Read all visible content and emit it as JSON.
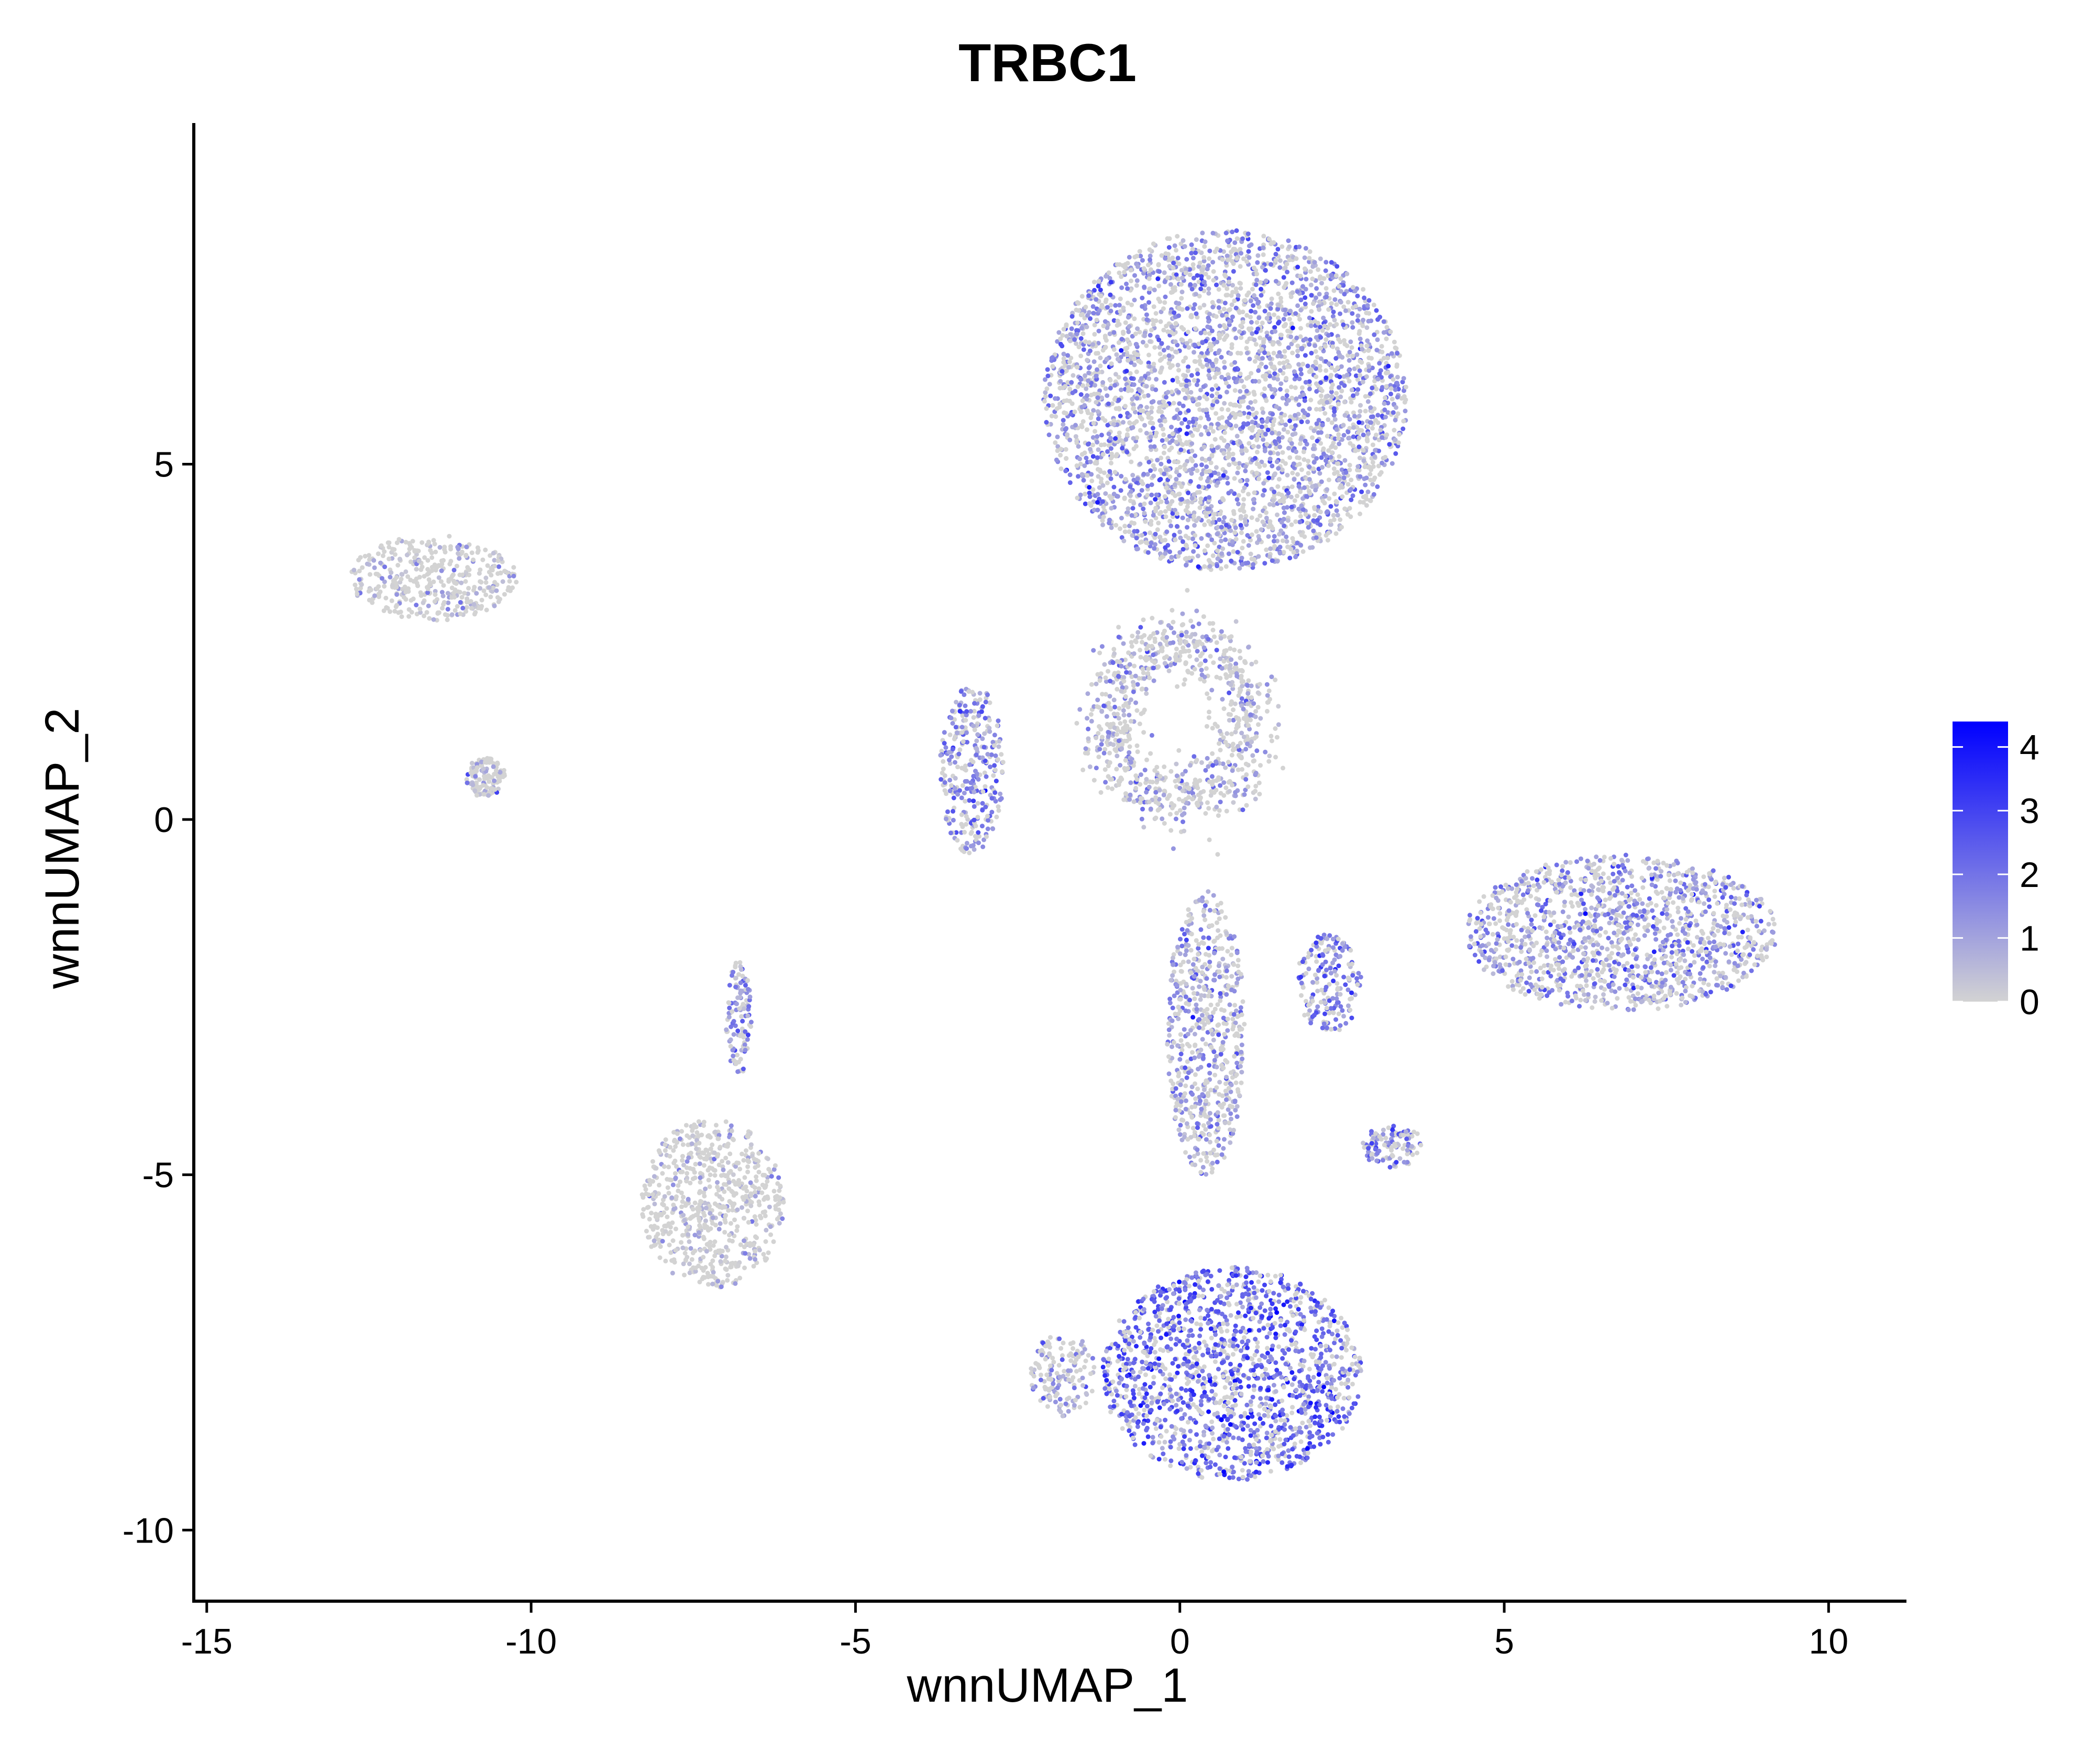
{
  "chart_data": {
    "type": "scatter",
    "title": "TRBC1",
    "xlabel": "wnnUMAP_1",
    "ylabel": "wnnUMAP_2",
    "xlim": [
      -15.2,
      11.2
    ],
    "ylim": [
      -11,
      9.8
    ],
    "xticks": [
      -15,
      -10,
      -5,
      0,
      5,
      10
    ],
    "yticks": [
      -10,
      -5,
      0,
      5
    ],
    "xtick_labels": [
      "-15",
      "-10",
      "-5",
      "0",
      "5",
      "10"
    ],
    "ytick_labels": [
      "-10",
      "-5",
      "0",
      "5"
    ],
    "grid": false,
    "legend": {
      "placement": "right",
      "ticks": [
        0,
        1,
        2,
        3,
        4
      ],
      "tick_labels": [
        "0",
        "1",
        "2",
        "3",
        "4"
      ],
      "range": [
        0,
        4.4
      ],
      "colors": {
        "low": "#d3d3d3",
        "high": "#0000ff"
      }
    },
    "clusters": [
      {
        "center": [
          -11.5,
          3.4
        ],
        "spread": [
          1.3,
          0.6
        ],
        "expression_mean": 0.05,
        "shape": "blob"
      },
      {
        "center": [
          -7.2,
          -5.4
        ],
        "spread": [
          1.1,
          1.2
        ],
        "expression_mean": 0.08,
        "shape": "blob"
      },
      {
        "center": [
          -10.7,
          0.6
        ],
        "spread": [
          0.3,
          0.3
        ],
        "expression_mean": 0.05,
        "shape": "blob"
      },
      {
        "center": [
          0.7,
          5.9
        ],
        "spread": [
          2.8,
          2.4
        ],
        "expression_mean": 1.2,
        "shape": "blob"
      },
      {
        "center": [
          0.8,
          -7.8
        ],
        "spread": [
          2.0,
          1.5
        ],
        "expression_mean": 2.2,
        "shape": "blob"
      },
      {
        "center": [
          6.8,
          -1.6
        ],
        "spread": [
          2.4,
          1.1
        ],
        "expression_mean": 1.3,
        "shape": "blob"
      },
      {
        "center": [
          2.3,
          -2.3
        ],
        "spread": [
          0.5,
          0.7
        ],
        "expression_mean": 1.8,
        "shape": "blob"
      },
      {
        "center": [
          3.3,
          -4.6
        ],
        "spread": [
          0.5,
          0.3
        ],
        "expression_mean": 1.4,
        "shape": "blob"
      },
      {
        "center": [
          -3.2,
          0.7
        ],
        "spread": [
          0.5,
          1.2
        ],
        "expression_mean": 1.5,
        "shape": "blob"
      },
      {
        "center": [
          0.0,
          1.4
        ],
        "spread": [
          1.3,
          1.3
        ],
        "expression_mean": 0.6,
        "shape": "ring"
      },
      {
        "center": [
          0.4,
          -3.0
        ],
        "spread": [
          0.6,
          2.0
        ],
        "expression_mean": 1.0,
        "shape": "blob"
      },
      {
        "center": [
          -1.8,
          -7.8
        ],
        "spread": [
          0.5,
          0.6
        ],
        "expression_mean": 0.7,
        "shape": "blob"
      },
      {
        "center": [
          -6.8,
          -2.8
        ],
        "spread": [
          0.2,
          0.8
        ],
        "expression_mean": 1.5,
        "shape": "blob"
      }
    ]
  }
}
